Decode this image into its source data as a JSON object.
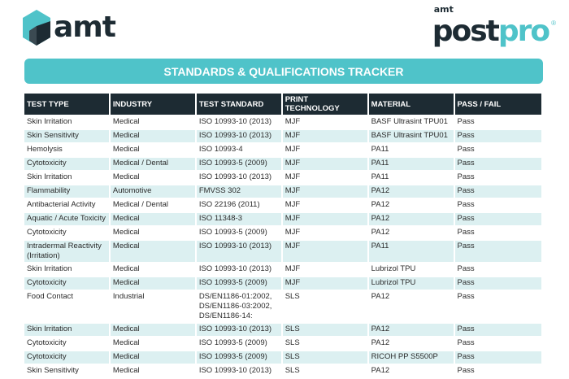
{
  "logos": {
    "left": "amt",
    "right_small": "amt",
    "right_post": "post",
    "right_pro": "pro",
    "right_mark": "®"
  },
  "colors": {
    "accent": "#4fc3c9",
    "dark": "#1d2b33",
    "row_alt": "#dcf0f1"
  },
  "title": "STANDARDS & QUALIFICATIONS TRACKER",
  "table": {
    "headers": [
      "TEST TYPE",
      "INDUSTRY",
      "TEST STANDARD",
      "PRINT TECHNOLOGY",
      "MATERIAL",
      "PASS / FAIL"
    ],
    "rows": [
      [
        "Skin Irritation",
        "Medical",
        "ISO 10993-10 (2013)",
        "MJF",
        "BASF Ultrasint TPU01",
        "Pass"
      ],
      [
        "Skin Sensitivity",
        "Medical",
        "ISO 10993-10 (2013)",
        "MJF",
        "BASF Ultrasint TPU01",
        "Pass"
      ],
      [
        "Hemolysis",
        "Medical",
        "ISO 10993-4",
        "MJF",
        "PA11",
        "Pass"
      ],
      [
        "Cytotoxicity",
        "Medical / Dental",
        "ISO 10993-5 (2009)",
        "MJF",
        "PA11",
        "Pass"
      ],
      [
        "Skin Irritation",
        "Medical",
        "ISO 10993-10 (2013)",
        "MJF",
        "PA11",
        "Pass"
      ],
      [
        "Flammability",
        "Automotive",
        "FMVSS 302",
        "MJF",
        "PA12",
        "Pass"
      ],
      [
        "Antibacterial Activity",
        "Medical / Dental",
        "ISO 22196 (2011)",
        "MJF",
        "PA12",
        "Pass"
      ],
      [
        "Aquatic / Acute Toxicity",
        "Medical",
        "ISO 11348-3",
        "MJF",
        "PA12",
        "Pass"
      ],
      [
        "Cytotoxicity",
        "Medical",
        "ISO 10993-5 (2009)",
        "MJF",
        "PA12",
        "Pass"
      ],
      [
        "Intradermal Reactivity (Irritation)",
        "Medical",
        "ISO 10993-10 (2013)",
        "MJF",
        "PA11",
        "Pass"
      ],
      [
        "Skin Irritation",
        "Medical",
        "ISO 10993-10 (2013)",
        "MJF",
        "Lubrizol TPU",
        "Pass"
      ],
      [
        "Cytotoxicity",
        "Medical",
        "ISO 10993-5 (2009)",
        "MJF",
        "Lubrizol TPU",
        "Pass"
      ],
      [
        "Food Contact",
        "Industrial",
        "DS/EN1186-01:2002, DS/EN1186-03:2002, DS/EN1186-14:",
        "SLS",
        "PA12",
        "Pass"
      ],
      [
        "Skin Irritation",
        "Medical",
        "ISO 10993-10 (2013)",
        "SLS",
        "PA12",
        "Pass"
      ],
      [
        "Cytotoxicity",
        "Medical",
        "ISO 10993-5 (2009)",
        "SLS",
        "PA12",
        "Pass"
      ],
      [
        "Cytotoxicity",
        "Medical",
        "ISO 10993-5 (2009)",
        "SLS",
        "RICOH PP S5500P",
        "Pass"
      ],
      [
        "Skin Sensitivity",
        "Medical",
        "ISO 10993-10 (2013)",
        "SLS",
        "PA12",
        "Pass"
      ]
    ]
  }
}
